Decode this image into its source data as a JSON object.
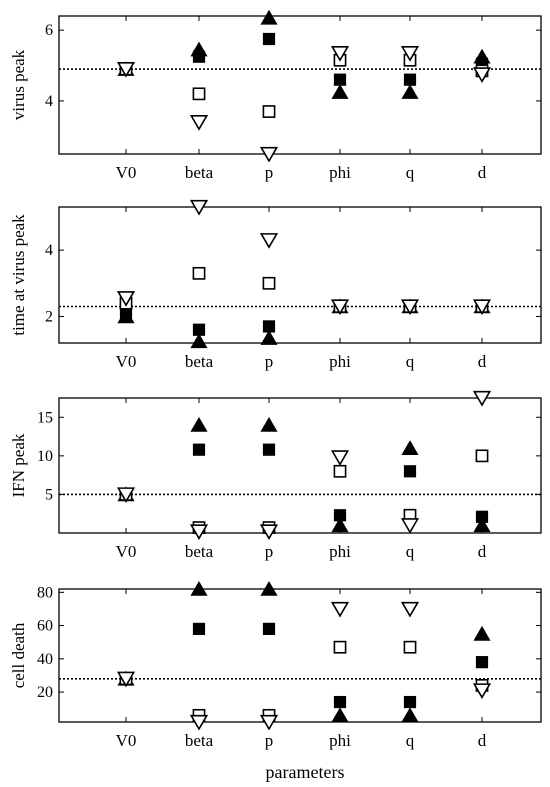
{
  "figure_xlabel": "parameters",
  "chart_data": [
    {
      "type": "scatter",
      "ylabel": "virus peak",
      "categories": [
        "V0",
        "beta",
        "p",
        "phi",
        "q",
        "d"
      ],
      "ylim": [
        2.5,
        6.4
      ],
      "yticks": [
        4,
        6
      ],
      "reference_line": 4.9,
      "series": [
        {
          "marker": "filled-triangle-up",
          "values": [
            4.9,
            5.45,
            6.35,
            4.25,
            4.25,
            5.25
          ]
        },
        {
          "marker": "filled-square",
          "values": [
            4.9,
            5.25,
            5.75,
            4.6,
            4.6,
            5.05
          ]
        },
        {
          "marker": "open-square",
          "values": [
            4.9,
            4.2,
            3.7,
            5.15,
            5.15,
            4.85
          ]
        },
        {
          "marker": "open-triangle-down",
          "values": [
            4.9,
            3.4,
            2.5,
            5.35,
            5.35,
            4.75
          ]
        }
      ]
    },
    {
      "type": "scatter",
      "ylabel": "time at virus peak",
      "categories": [
        "V0",
        "beta",
        "p",
        "phi",
        "q",
        "d"
      ],
      "ylim": [
        1.2,
        5.3
      ],
      "yticks": [
        2,
        4
      ],
      "reference_line": 2.3,
      "series": [
        {
          "marker": "filled-triangle-up",
          "values": [
            2.0,
            1.25,
            1.35,
            2.3,
            2.3,
            2.3
          ]
        },
        {
          "marker": "filled-square",
          "values": [
            2.1,
            1.6,
            1.7,
            2.3,
            2.3,
            2.3
          ]
        },
        {
          "marker": "open-square",
          "values": [
            2.4,
            3.3,
            3.0,
            2.3,
            2.3,
            2.3
          ]
        },
        {
          "marker": "open-triangle-down",
          "values": [
            2.55,
            5.3,
            4.3,
            2.3,
            2.3,
            2.3
          ]
        }
      ]
    },
    {
      "type": "scatter",
      "ylabel": "IFN peak",
      "categories": [
        "V0",
        "beta",
        "p",
        "phi",
        "q",
        "d"
      ],
      "ylim": [
        0,
        17.5
      ],
      "yticks": [
        5,
        10,
        15
      ],
      "reference_line": 5,
      "series": [
        {
          "marker": "filled-triangle-up",
          "values": [
            5,
            14,
            14,
            1,
            11,
            1
          ]
        },
        {
          "marker": "filled-square",
          "values": [
            5,
            10.8,
            10.8,
            2.3,
            8,
            2.1
          ]
        },
        {
          "marker": "open-square",
          "values": [
            5,
            0.7,
            0.7,
            8,
            2.3,
            10
          ]
        },
        {
          "marker": "open-triangle-down",
          "values": [
            5,
            0.2,
            0.2,
            9.8,
            1,
            17.5
          ]
        }
      ]
    },
    {
      "type": "scatter",
      "ylabel": "cell death",
      "categories": [
        "V0",
        "beta",
        "p",
        "phi",
        "q",
        "d"
      ],
      "ylim": [
        2,
        82
      ],
      "yticks": [
        20,
        40,
        60,
        80
      ],
      "reference_line": 28,
      "series": [
        {
          "marker": "filled-triangle-up",
          "values": [
            28,
            82,
            82,
            6,
            6,
            55
          ]
        },
        {
          "marker": "filled-square",
          "values": [
            28,
            58,
            58,
            14,
            14,
            38
          ]
        },
        {
          "marker": "open-square",
          "values": [
            28,
            6,
            6,
            47,
            47,
            24
          ]
        },
        {
          "marker": "open-triangle-down",
          "values": [
            28,
            2,
            2,
            70,
            70,
            21
          ]
        }
      ]
    }
  ]
}
